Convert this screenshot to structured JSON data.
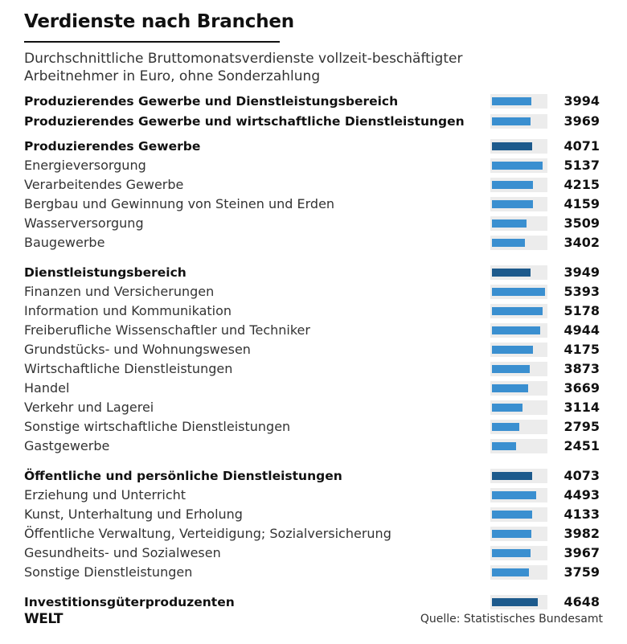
{
  "header": {
    "title": "Verdienste nach Branchen",
    "subtitle": "Durchschnittliche Bruttomonatsverdienste vollzeit-beschäftigter Arbeitnehmer in Euro, ohne Sonderzahlung"
  },
  "colors": {
    "total_bar": "#3a8fd0",
    "sector_bar": "#1d5a8c",
    "branch_bar": "#3a8fd0",
    "track": "#ececec"
  },
  "chart_data": {
    "type": "bar",
    "title": "Verdienste nach Branchen",
    "subtitle": "Durchschnittliche Bruttomonatsverdienste vollzeit-beschäftigter Arbeitnehmer in Euro, ohne Sonderzahlung",
    "unit": "Euro",
    "orientation": "horizontal",
    "xlim": [
      0,
      5500
    ],
    "rows": [
      {
        "label": "Produzierendes Gewerbe und Dienstleistungsbereich",
        "value": 3994,
        "kind": "total"
      },
      {
        "label": "Produzierendes Gewerbe und wirtschaftliche Dienstleistungen",
        "value": 3969,
        "kind": "total"
      },
      {
        "label": "Produzierendes Gewerbe",
        "value": 4071,
        "kind": "sector"
      },
      {
        "label": "Energieversorgung",
        "value": 5137,
        "kind": "branch"
      },
      {
        "label": "Verarbeitendes Gewerbe",
        "value": 4215,
        "kind": "branch"
      },
      {
        "label": "Bergbau und Gewinnung von Steinen und Erden",
        "value": 4159,
        "kind": "branch"
      },
      {
        "label": "Wasserversorgung",
        "value": 3509,
        "kind": "branch"
      },
      {
        "label": "Baugewerbe",
        "value": 3402,
        "kind": "branch"
      },
      {
        "label": "Dienstleistungsbereich",
        "value": 3949,
        "kind": "sector"
      },
      {
        "label": "Finanzen und Versicherungen",
        "value": 5393,
        "kind": "branch"
      },
      {
        "label": "Information und Kommunikation",
        "value": 5178,
        "kind": "branch"
      },
      {
        "label": "Freiberufliche Wissenschaftler und Techniker",
        "value": 4944,
        "kind": "branch"
      },
      {
        "label": "Grundstücks- und Wohnungswesen",
        "value": 4175,
        "kind": "branch"
      },
      {
        "label": "Wirtschaftliche Dienstleistungen",
        "value": 3873,
        "kind": "branch"
      },
      {
        "label": "Handel",
        "value": 3669,
        "kind": "branch"
      },
      {
        "label": "Verkehr und Lagerei",
        "value": 3114,
        "kind": "branch"
      },
      {
        "label": "Sonstige wirtschaftliche Dienstleistungen",
        "value": 2795,
        "kind": "branch"
      },
      {
        "label": "Gastgewerbe",
        "value": 2451,
        "kind": "branch"
      },
      {
        "label": "Öffentliche und persönliche Dienstleistungen",
        "value": 4073,
        "kind": "sector"
      },
      {
        "label": "Erziehung und Unterricht",
        "value": 4493,
        "kind": "branch"
      },
      {
        "label": "Kunst, Unterhaltung und Erholung",
        "value": 4133,
        "kind": "branch"
      },
      {
        "label": "Öffentliche Verwaltung, Verteidigung; Sozialversicherung",
        "value": 3982,
        "kind": "branch"
      },
      {
        "label": "Gesundheits- und Sozialwesen",
        "value": 3967,
        "kind": "branch"
      },
      {
        "label": "Sonstige Dienstleistungen",
        "value": 3759,
        "kind": "branch"
      },
      {
        "label": "Investitionsgüterproduzenten",
        "value": 4648,
        "kind": "sector"
      }
    ]
  },
  "footer": {
    "logo": "WELT",
    "source": "Quelle: Statistisches Bundesamt"
  }
}
